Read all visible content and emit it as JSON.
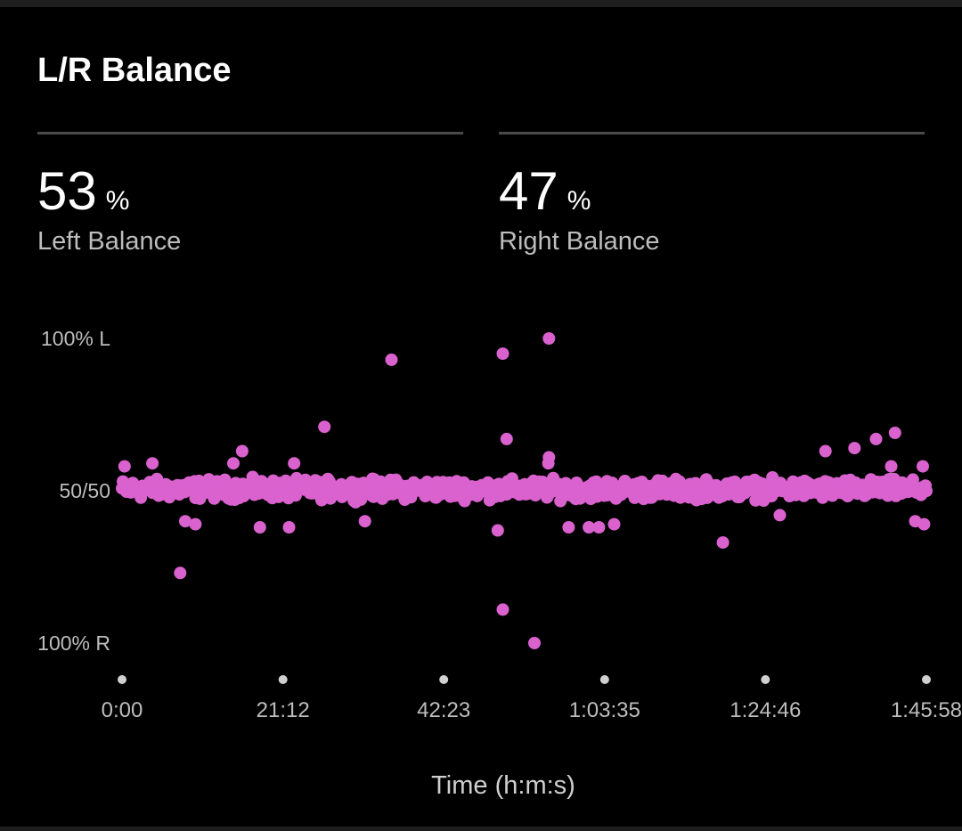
{
  "header": {
    "title": "L/R Balance"
  },
  "stats": {
    "left": {
      "value": "53",
      "unit": "%",
      "label": "Left Balance"
    },
    "right": {
      "value": "47",
      "unit": "%",
      "label": "Right Balance"
    }
  },
  "colors": {
    "background": "#000000",
    "points": "#da62cf",
    "text": "#ffffff",
    "muted": "#bdbdbd"
  },
  "chart_data": {
    "type": "scatter",
    "title": "",
    "xlabel": "Time (h:m:s)",
    "ylabel": "",
    "x_ticks": [
      "0:00",
      "21:12",
      "42:23",
      "1:03:35",
      "1:24:46",
      "1:45:58"
    ],
    "x_tick_seconds": [
      0,
      1272,
      2543,
      3815,
      5086,
      6358
    ],
    "xlim": [
      0,
      6358
    ],
    "y_ticks": [
      "100% L",
      "50/50",
      "100% R"
    ],
    "y_tick_values": [
      100,
      50,
      0
    ],
    "ylim": [
      0,
      100
    ],
    "y_unit": "% left",
    "grid": false,
    "series": [
      {
        "band": {
          "x_start": 0,
          "x_end": 6358,
          "y_center": 50.5,
          "y_spread": 4.5,
          "count": 900
        },
        "outliers": [
          {
            "x": 460,
            "y": 23
          },
          {
            "x": 2130,
            "y": 93
          },
          {
            "x": 1600,
            "y": 71
          },
          {
            "x": 950,
            "y": 63
          },
          {
            "x": 3010,
            "y": 95
          },
          {
            "x": 3040,
            "y": 67
          },
          {
            "x": 3375,
            "y": 100
          },
          {
            "x": 3375,
            "y": 61
          },
          {
            "x": 3010,
            "y": 11
          },
          {
            "x": 3260,
            "y": 0
          },
          {
            "x": 2970,
            "y": 37
          },
          {
            "x": 4750,
            "y": 33
          },
          {
            "x": 5960,
            "y": 67
          },
          {
            "x": 5790,
            "y": 64
          },
          {
            "x": 6110,
            "y": 69
          },
          {
            "x": 5560,
            "y": 63
          },
          {
            "x": 6340,
            "y": 39
          },
          {
            "x": 6270,
            "y": 40
          },
          {
            "x": 500,
            "y": 40
          },
          {
            "x": 580,
            "y": 39
          },
          {
            "x": 1090,
            "y": 38
          },
          {
            "x": 1320,
            "y": 38
          },
          {
            "x": 1920,
            "y": 40
          },
          {
            "x": 3530,
            "y": 38
          },
          {
            "x": 3690,
            "y": 38
          },
          {
            "x": 3770,
            "y": 38
          },
          {
            "x": 3890,
            "y": 39
          },
          {
            "x": 5200,
            "y": 42
          },
          {
            "x": 20,
            "y": 58
          },
          {
            "x": 240,
            "y": 59
          },
          {
            "x": 880,
            "y": 59
          },
          {
            "x": 1360,
            "y": 59
          },
          {
            "x": 3370,
            "y": 59
          },
          {
            "x": 6080,
            "y": 58
          },
          {
            "x": 6330,
            "y": 58
          }
        ]
      }
    ]
  }
}
